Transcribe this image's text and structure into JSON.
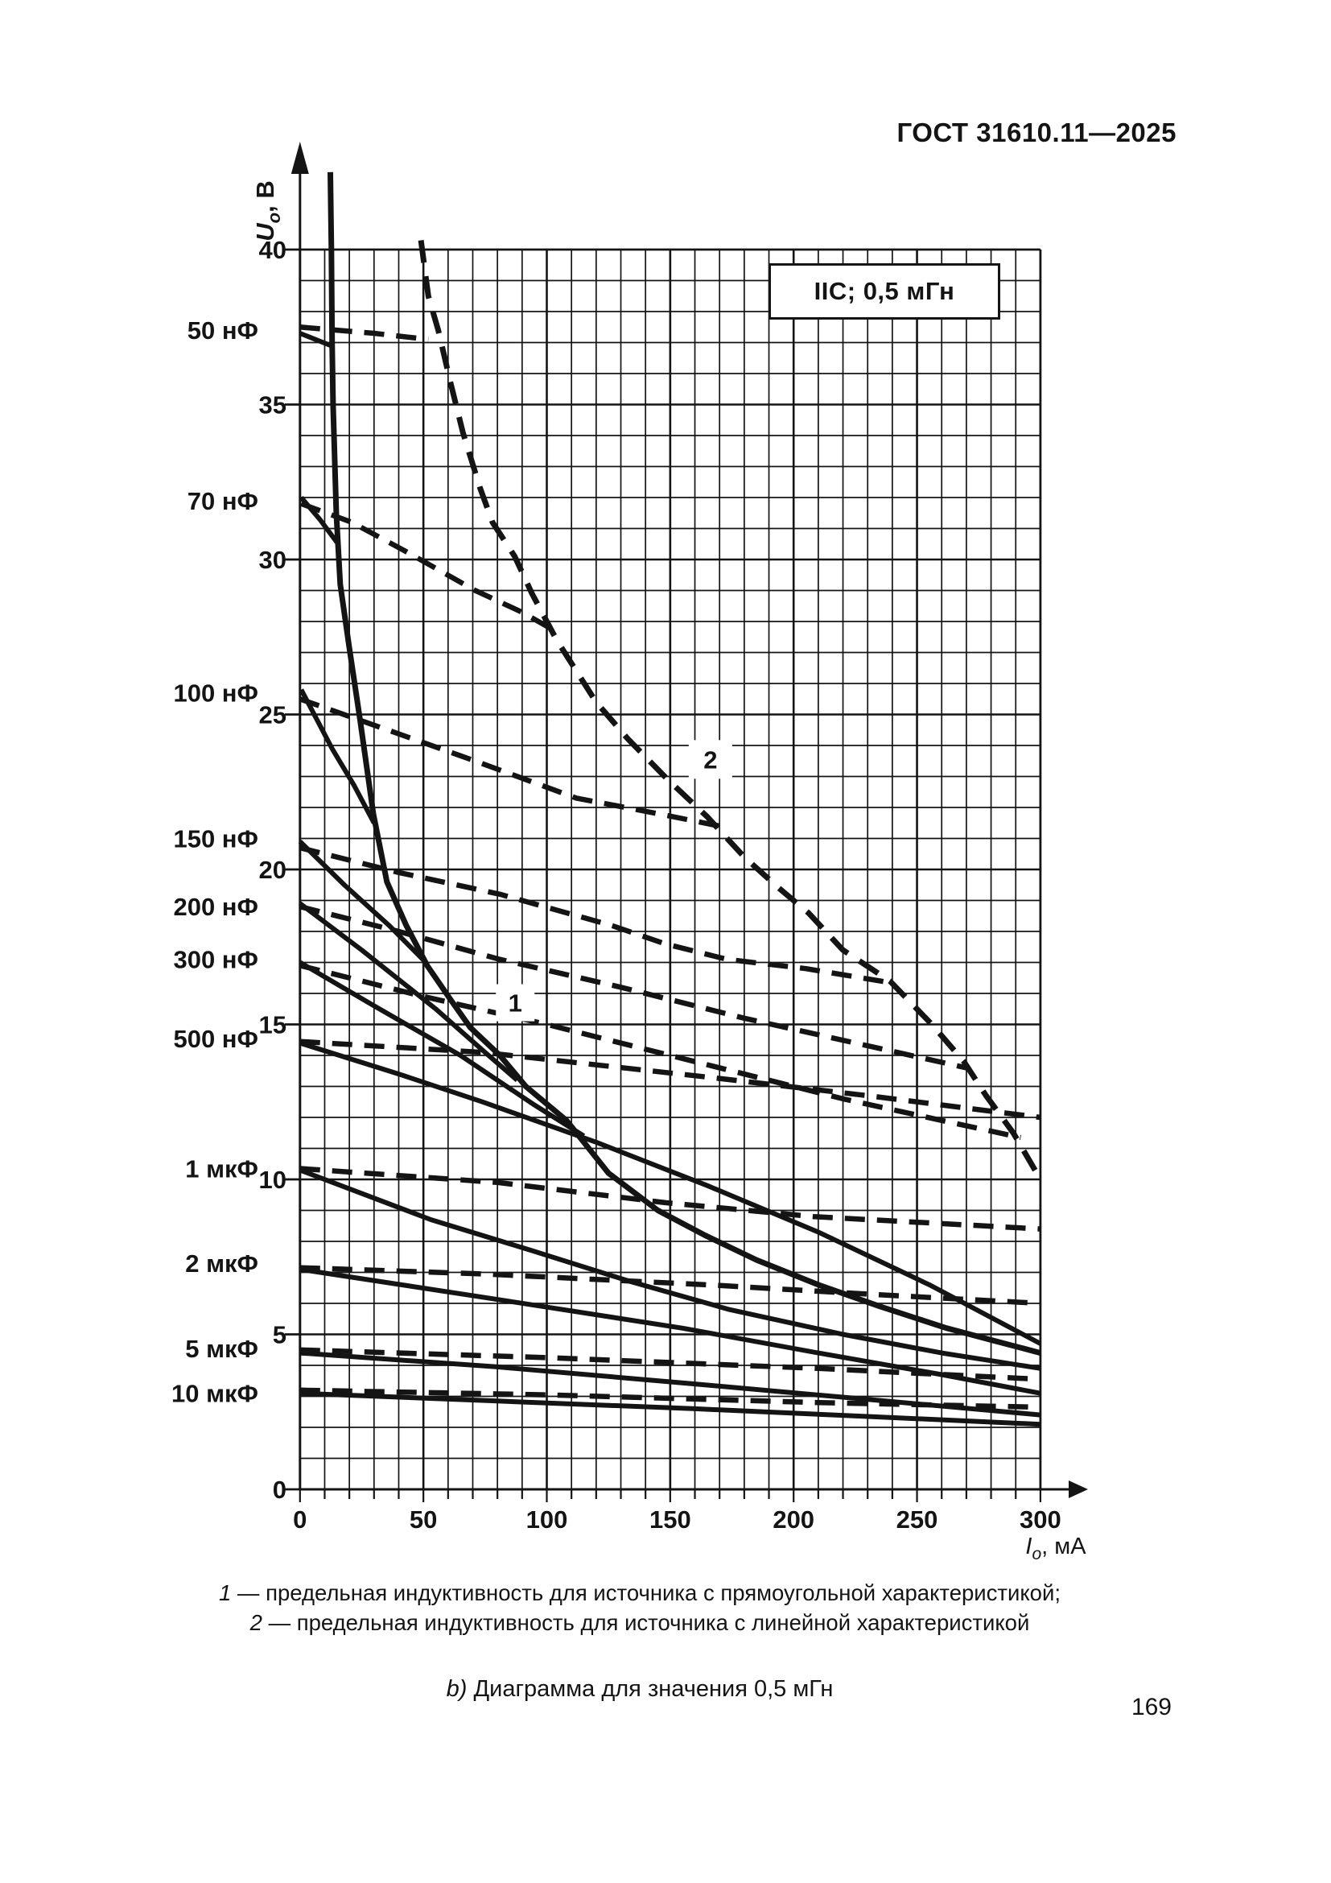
{
  "page": {
    "header": "ГОСТ 31610.11—2025",
    "number": "169"
  },
  "caption": {
    "items": [
      {
        "num": "1",
        "text": " — предельная индуктивность для источника с прямоугольной характеристикой;"
      },
      {
        "num": "2",
        "text": " — предельная индуктивность для источника с линейной характеристикой"
      }
    ],
    "subtitle_prefix": "b)",
    "subtitle_rest": " Диаграмма для значения 0,5 мГн"
  },
  "chart_data": {
    "type": "line",
    "title_box": "IIC; 0,5 мГн",
    "x_axis": {
      "title_main": "I",
      "title_sub": "o",
      "title_rest": ", мА",
      "range": [
        0,
        300
      ],
      "major_ticks": [
        0,
        50,
        100,
        150,
        200,
        250,
        300
      ],
      "minor_step": 10,
      "grid": true
    },
    "y_axis": {
      "title_main": "U",
      "title_sub": "o",
      "title_rest": ", В",
      "range": [
        0,
        40
      ],
      "major_ticks": [
        40,
        35,
        30,
        25,
        20,
        15,
        10,
        5,
        0
      ],
      "minor_step": 1,
      "grid": true
    },
    "capacitance_labels": [
      {
        "text": "50 нФ",
        "v": 37.4
      },
      {
        "text": "70 нФ",
        "v": 31.9
      },
      {
        "text": "100 нФ",
        "v": 25.7
      },
      {
        "text": "150 нФ",
        "v": 21.0
      },
      {
        "text": "200 нФ",
        "v": 18.8
      },
      {
        "text": "300 нФ",
        "v": 17.1
      },
      {
        "text": "500 нФ",
        "v": 14.55
      },
      {
        "text": "1 мкФ",
        "v": 10.35
      },
      {
        "text": "2 мкФ",
        "v": 7.3
      },
      {
        "text": "5 мкФ",
        "v": 4.55
      },
      {
        "text": "10 мкФ",
        "v": 3.1
      }
    ],
    "curve_markers": [
      {
        "text": "1",
        "i": 87.2,
        "v": 15.7,
        "w": 48,
        "h": 46
      },
      {
        "text": "2",
        "i": 166.3,
        "v": 23.55,
        "w": 54,
        "h": 48
      }
    ],
    "series": [
      {
        "id": "limit-1",
        "label": "1 — предельная индуктивность (прямоугольная характеристика)",
        "style": "solid",
        "width": 7,
        "points": [
          [
            12.3,
            42.5
          ],
          [
            12.7,
            40
          ],
          [
            13.0,
            37
          ],
          [
            13.4,
            35
          ],
          [
            14.7,
            31.5
          ],
          [
            16.3,
            29.2
          ],
          [
            19.9,
            27.2
          ],
          [
            24.4,
            24.8
          ],
          [
            29.7,
            21.8
          ],
          [
            35.2,
            19.6
          ],
          [
            43,
            18.2
          ],
          [
            51.5,
            16.9
          ],
          [
            61,
            15.8
          ],
          [
            69,
            14.9
          ],
          [
            81,
            14.0
          ],
          [
            91.5,
            13.0
          ],
          [
            108,
            11.9
          ],
          [
            125,
            10.2
          ],
          [
            145,
            9.0
          ],
          [
            164,
            8.2
          ],
          [
            185,
            7.4
          ],
          [
            210,
            6.6
          ],
          [
            235,
            5.9
          ],
          [
            262,
            5.2
          ],
          [
            281,
            4.8
          ],
          [
            300,
            4.4
          ]
        ]
      },
      {
        "id": "limit-2",
        "label": "2 — предельная индуктивность (линейная характеристика)",
        "style": "dashed",
        "width": 7,
        "points": [
          [
            49,
            40.3
          ],
          [
            52,
            38.5
          ],
          [
            56,
            37.4
          ],
          [
            61,
            35.7
          ],
          [
            66,
            34.1
          ],
          [
            73,
            32.3
          ],
          [
            78,
            31.2
          ],
          [
            87,
            30.1
          ],
          [
            94,
            28.9
          ],
          [
            104,
            27.4
          ],
          [
            120,
            25.4
          ],
          [
            133,
            24.2
          ],
          [
            149,
            22.9
          ],
          [
            165,
            21.7
          ],
          [
            180,
            20.4
          ],
          [
            194,
            19.4
          ],
          [
            206,
            18.6
          ],
          [
            220,
            17.4
          ],
          [
            239,
            16.4
          ],
          [
            256,
            15.0
          ],
          [
            269,
            13.8
          ],
          [
            278,
            12.7
          ],
          [
            289,
            11.5
          ],
          [
            300,
            10.0
          ]
        ]
      },
      {
        "id": "c50-solid",
        "label": "50 нФ",
        "style": "solid",
        "width": 6,
        "points": [
          [
            0,
            37.3
          ],
          [
            12.6,
            36.9
          ]
        ]
      },
      {
        "id": "c50-dash",
        "label": "50 нФ",
        "style": "dashed",
        "width": 6.5,
        "points": [
          [
            0,
            37.5
          ],
          [
            30,
            37.3
          ],
          [
            52,
            37.1
          ]
        ]
      },
      {
        "id": "c70-solid",
        "label": "70 нФ",
        "style": "solid",
        "width": 6,
        "points": [
          [
            0.5,
            32.0
          ],
          [
            8,
            31.3
          ],
          [
            15.5,
            30.5
          ]
        ]
      },
      {
        "id": "c70-dash",
        "label": "70 нФ",
        "style": "dashed",
        "width": 6.5,
        "points": [
          [
            0.5,
            31.8
          ],
          [
            21,
            31.2
          ],
          [
            42,
            30.3
          ],
          [
            71,
            29.0
          ],
          [
            90,
            28.3
          ],
          [
            101,
            27.8
          ]
        ]
      },
      {
        "id": "c100-solid",
        "label": "100 нФ",
        "style": "solid",
        "width": 6,
        "points": [
          [
            0.5,
            25.8
          ],
          [
            13,
            23.9
          ],
          [
            22,
            22.7
          ],
          [
            30,
            21.5
          ]
        ]
      },
      {
        "id": "c100-dash",
        "label": "100 нФ",
        "style": "dashed",
        "width": 6.5,
        "points": [
          [
            0,
            25.5
          ],
          [
            32,
            24.6
          ],
          [
            71,
            23.5
          ],
          [
            112,
            22.3
          ],
          [
            145,
            21.8
          ],
          [
            170,
            21.4
          ]
        ]
      },
      {
        "id": "c150-solid",
        "label": "150 нФ",
        "style": "solid",
        "width": 6,
        "points": [
          [
            0,
            20.9
          ],
          [
            18,
            19.5
          ],
          [
            36,
            18.2
          ],
          [
            51,
            17.0
          ]
        ]
      },
      {
        "id": "c150-dash",
        "label": "150 нФ",
        "style": "dashed",
        "width": 6.5,
        "points": [
          [
            0,
            20.7
          ],
          [
            40,
            19.9
          ],
          [
            81,
            19.2
          ],
          [
            126,
            18.2
          ],
          [
            148,
            17.6
          ],
          [
            173,
            17.1
          ],
          [
            205,
            16.8
          ],
          [
            239,
            16.35
          ]
        ]
      },
      {
        "id": "c200-solid",
        "label": "200 нФ",
        "style": "solid",
        "width": 6,
        "points": [
          [
            0,
            18.9
          ],
          [
            25,
            17.4
          ],
          [
            55,
            15.5
          ],
          [
            75,
            14.1
          ],
          [
            88,
            13.2
          ]
        ]
      },
      {
        "id": "c200-dash",
        "label": "200 нФ",
        "style": "dashed",
        "width": 6.5,
        "points": [
          [
            0,
            18.8
          ],
          [
            40,
            18.0
          ],
          [
            81,
            17.1
          ],
          [
            130,
            16.2
          ],
          [
            180,
            15.2
          ],
          [
            225,
            14.4
          ],
          [
            270,
            13.6
          ]
        ]
      },
      {
        "id": "c300-solid",
        "label": "300 нФ",
        "style": "solid",
        "width": 6,
        "points": [
          [
            0,
            17.0
          ],
          [
            30,
            15.6
          ],
          [
            65,
            14.0
          ],
          [
            95,
            12.4
          ],
          [
            115,
            11.4
          ]
        ]
      },
      {
        "id": "c300-dash",
        "label": "300 нФ",
        "style": "dashed",
        "width": 6.5,
        "points": [
          [
            0,
            16.9
          ],
          [
            50,
            15.9
          ],
          [
            100,
            15.0
          ],
          [
            160,
            13.8
          ],
          [
            220,
            12.6
          ],
          [
            260,
            11.9
          ],
          [
            292,
            11.35
          ]
        ]
      },
      {
        "id": "c500-solid",
        "label": "500 нФ",
        "style": "solid",
        "width": 6,
        "points": [
          [
            0,
            14.4
          ],
          [
            40,
            13.4
          ],
          [
            74,
            12.5
          ],
          [
            120,
            11.2
          ],
          [
            165,
            9.8
          ],
          [
            210,
            8.3
          ],
          [
            255,
            6.6
          ],
          [
            300,
            4.7
          ]
        ]
      },
      {
        "id": "c500-dash",
        "label": "500 нФ",
        "style": "dashed",
        "width": 6.5,
        "points": [
          [
            0,
            14.45
          ],
          [
            74,
            14.1
          ],
          [
            165,
            13.3
          ],
          [
            230,
            12.7
          ],
          [
            300,
            12.0
          ]
        ]
      },
      {
        "id": "c1u-solid",
        "label": "1 мкФ",
        "style": "solid",
        "width": 6,
        "points": [
          [
            0,
            10.3
          ],
          [
            53,
            8.7
          ],
          [
            94,
            7.7
          ],
          [
            134,
            6.7
          ],
          [
            174,
            5.8
          ],
          [
            220,
            5.0
          ],
          [
            260,
            4.4
          ],
          [
            300,
            3.9
          ]
        ]
      },
      {
        "id": "c1u-dash",
        "label": "1 мкФ",
        "style": "dashed",
        "width": 6.5,
        "points": [
          [
            0,
            10.35
          ],
          [
            80,
            9.9
          ],
          [
            148,
            9.25
          ],
          [
            208,
            8.8
          ],
          [
            300,
            8.4
          ]
        ]
      },
      {
        "id": "c2u-solid",
        "label": "2 мкФ",
        "style": "solid",
        "width": 6,
        "points": [
          [
            0,
            7.1
          ],
          [
            74,
            6.2
          ],
          [
            155,
            5.2
          ],
          [
            210,
            4.4
          ],
          [
            260,
            3.7
          ],
          [
            300,
            3.1
          ]
        ]
      },
      {
        "id": "c2u-dash",
        "label": "2 мкФ",
        "style": "dashed",
        "width": 6.5,
        "points": [
          [
            0,
            7.15
          ],
          [
            74,
            6.95
          ],
          [
            165,
            6.6
          ],
          [
            230,
            6.3
          ],
          [
            300,
            6.0
          ]
        ]
      },
      {
        "id": "c5u-solid",
        "label": "5 мкФ",
        "style": "solid",
        "width": 6,
        "points": [
          [
            0,
            4.4
          ],
          [
            80,
            3.95
          ],
          [
            160,
            3.4
          ],
          [
            230,
            2.9
          ],
          [
            300,
            2.4
          ]
        ]
      },
      {
        "id": "c5u-dash",
        "label": "5 мкФ",
        "style": "dashed",
        "width": 6.5,
        "points": [
          [
            0,
            4.5
          ],
          [
            100,
            4.25
          ],
          [
            210,
            3.9
          ],
          [
            300,
            3.55
          ]
        ]
      },
      {
        "id": "c10u-solid",
        "label": "10 мкФ",
        "style": "solid",
        "width": 6,
        "points": [
          [
            0,
            3.1
          ],
          [
            80,
            2.85
          ],
          [
            160,
            2.6
          ],
          [
            230,
            2.35
          ],
          [
            300,
            2.1
          ]
        ]
      },
      {
        "id": "c10u-dash",
        "label": "10 мкФ",
        "style": "dashed",
        "width": 6.5,
        "points": [
          [
            0,
            3.2
          ],
          [
            100,
            3.05
          ],
          [
            210,
            2.8
          ],
          [
            300,
            2.65
          ]
        ]
      }
    ]
  }
}
